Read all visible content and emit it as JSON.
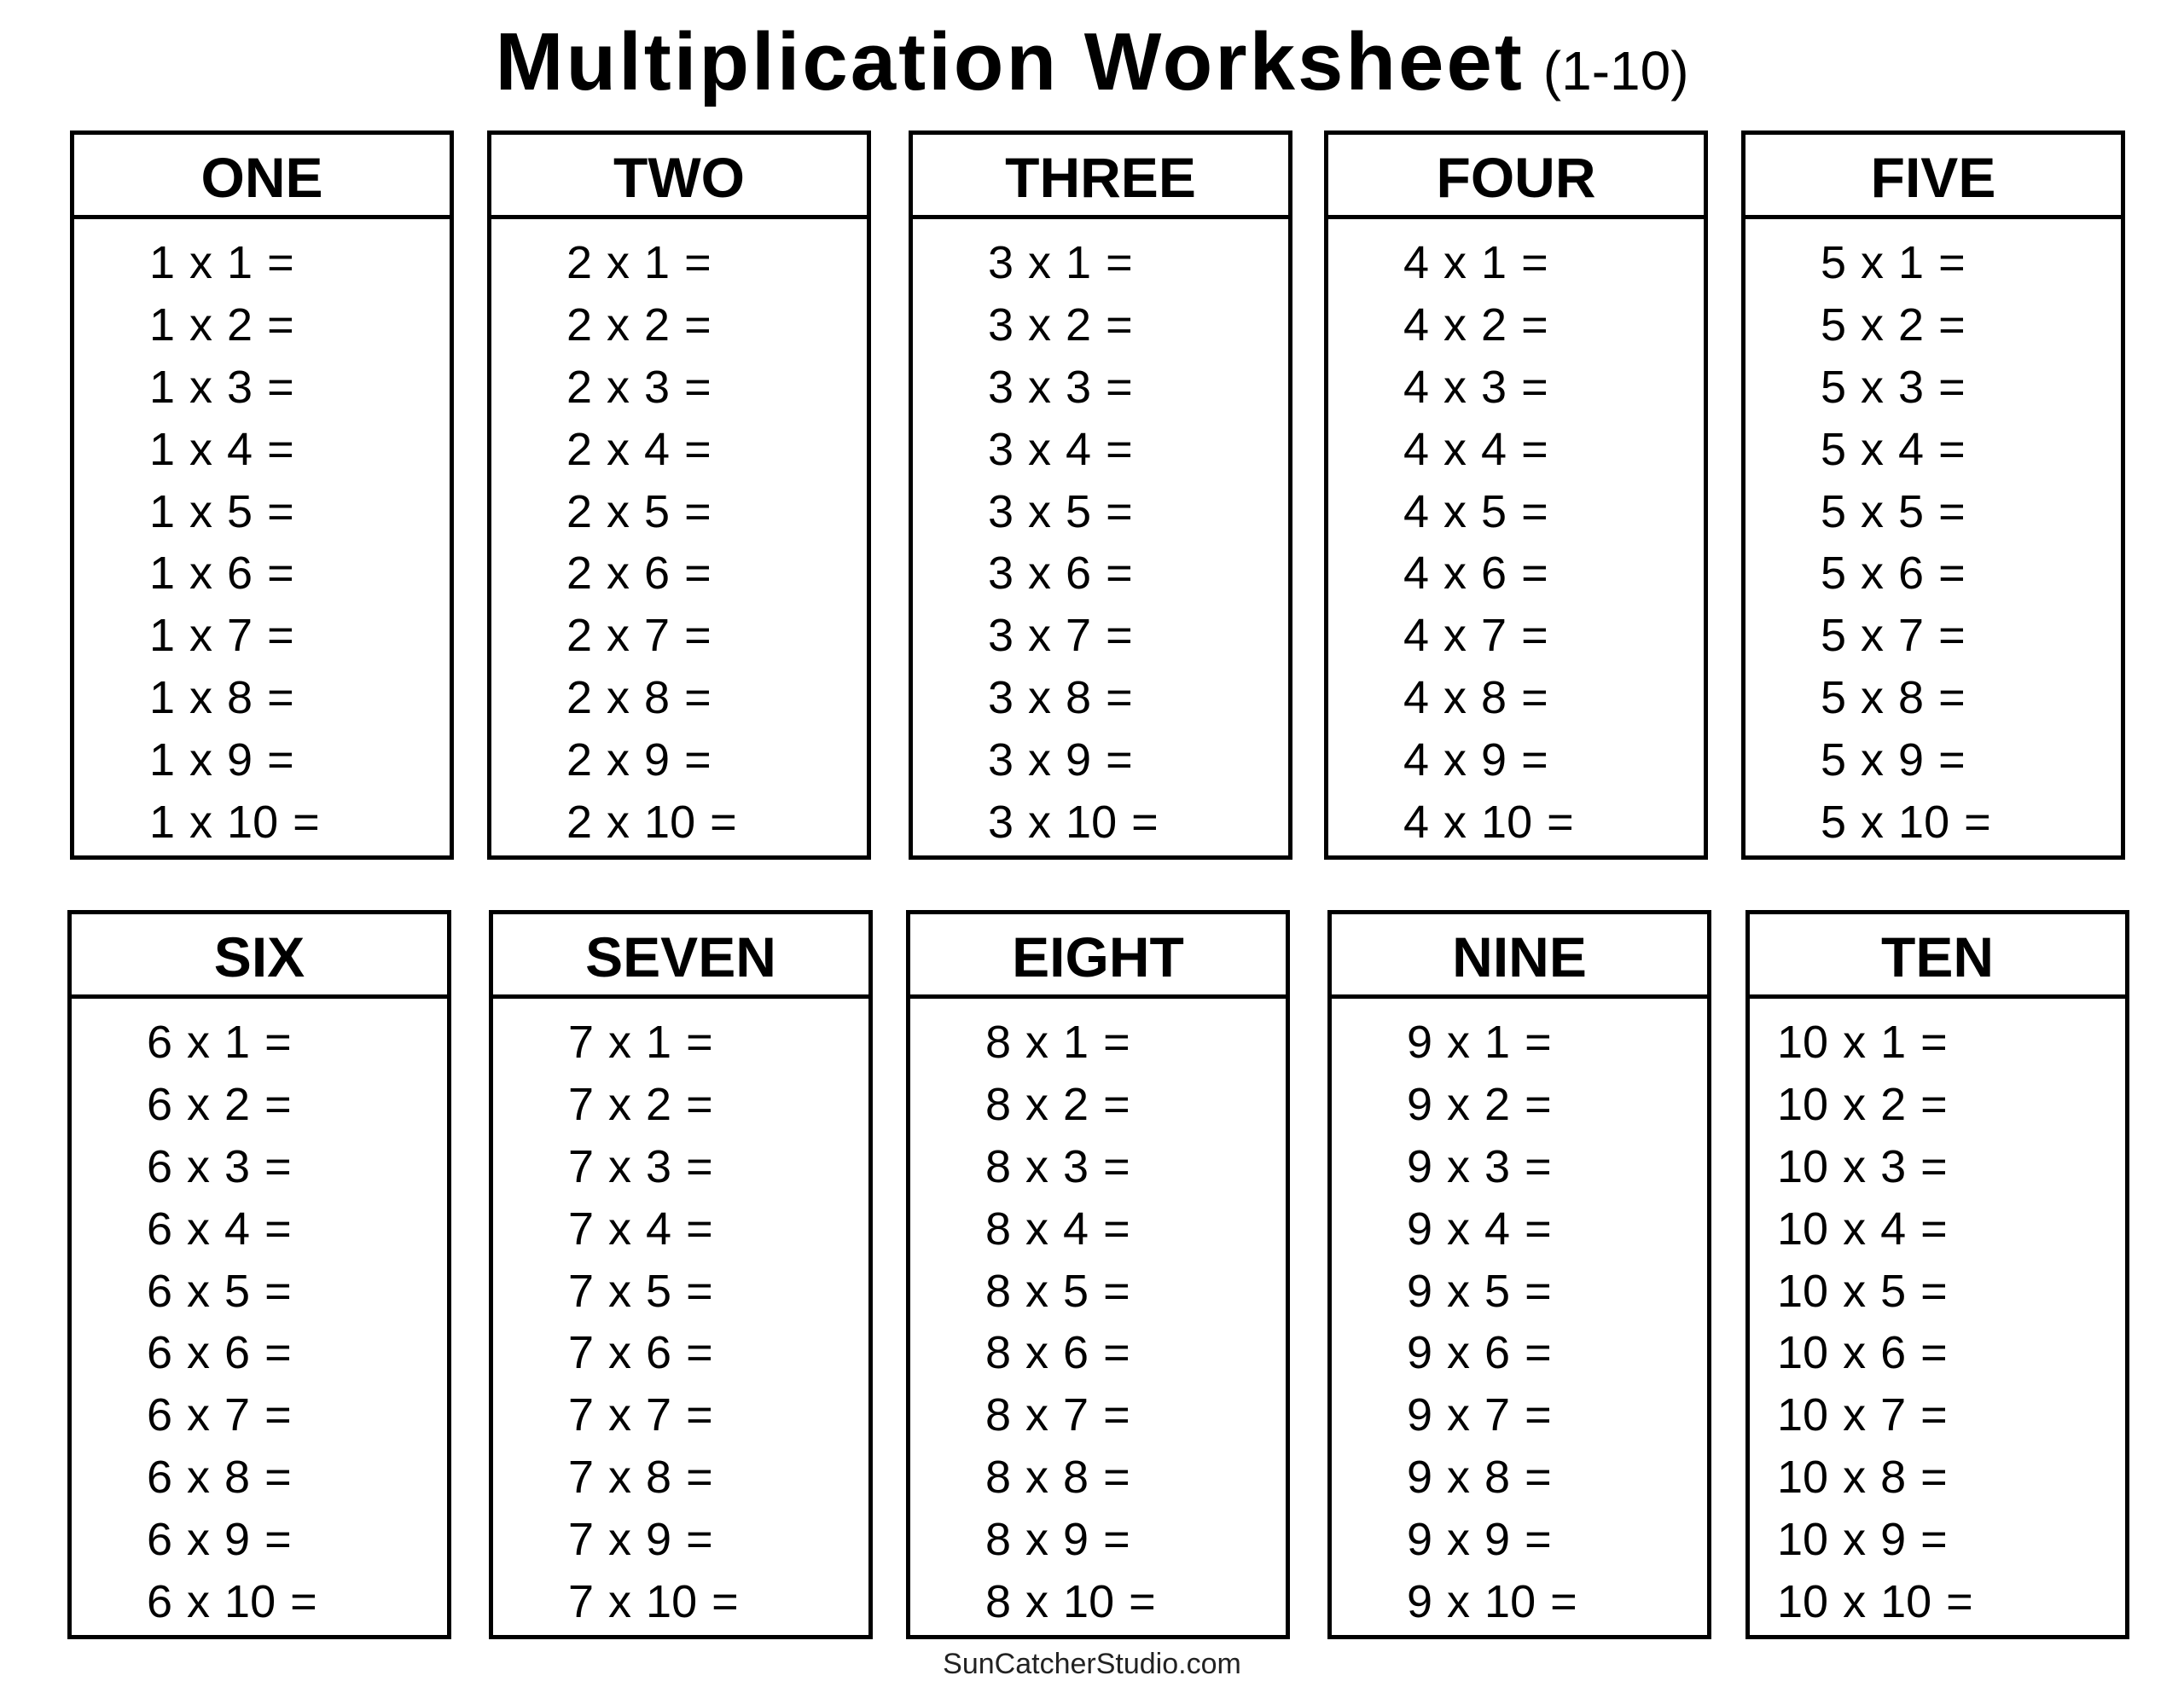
{
  "title": {
    "main": "Multiplication Worksheet",
    "sub": "(1-10)"
  },
  "tables": [
    {
      "name": "ONE",
      "n": 1
    },
    {
      "name": "TWO",
      "n": 2
    },
    {
      "name": "THREE",
      "n": 3
    },
    {
      "name": "FOUR",
      "n": 4
    },
    {
      "name": "FIVE",
      "n": 5
    },
    {
      "name": "SIX",
      "n": 6
    },
    {
      "name": "SEVEN",
      "n": 7
    },
    {
      "name": "EIGHT",
      "n": 8
    },
    {
      "name": "NINE",
      "n": 9
    },
    {
      "name": "TEN",
      "n": 10
    }
  ],
  "problems": {
    "1": [
      "1 x 1 =",
      "1 x 2 =",
      "1 x 3 =",
      "1 x 4 =",
      "1 x 5 =",
      "1 x 6 =",
      "1 x 7 =",
      "1 x 8 =",
      "1 x 9 =",
      "1 x 10 ="
    ],
    "2": [
      "2 x 1 =",
      "2 x 2 =",
      "2 x 3 =",
      "2 x 4 =",
      "2 x 5 =",
      "2 x 6 =",
      "2 x 7 =",
      "2 x 8 =",
      "2 x 9 =",
      "2 x 10 ="
    ],
    "3": [
      "3 x 1 =",
      "3 x 2 =",
      "3 x 3 =",
      "3 x 4 =",
      "3 x 5 =",
      "3 x 6 =",
      "3 x 7 =",
      "3 x 8 =",
      "3 x 9 =",
      "3 x 10 ="
    ],
    "4": [
      "4 x 1 =",
      "4 x 2 =",
      "4 x 3 =",
      "4 x 4 =",
      "4 x 5 =",
      "4 x 6 =",
      "4 x 7 =",
      "4 x 8 =",
      "4 x 9 =",
      "4 x 10 ="
    ],
    "5": [
      "5 x 1 =",
      "5 x 2 =",
      "5 x 3 =",
      "5 x 4 =",
      "5 x 5 =",
      "5 x 6 =",
      "5 x 7 =",
      "5 x 8 =",
      "5 x 9 =",
      "5 x 10 ="
    ],
    "6": [
      "6 x 1 =",
      "6 x 2 =",
      "6 x 3 =",
      "6 x 4 =",
      "6 x 5 =",
      "6 x 6 =",
      "6 x 7 =",
      "6 x 8 =",
      "6 x 9 =",
      "6 x 10 ="
    ],
    "7": [
      "7 x 1 =",
      "7 x 2 =",
      "7 x 3 =",
      "7 x 4 =",
      "7 x 5 =",
      "7 x 6 =",
      "7 x 7 =",
      "7 x 8 =",
      "7 x 9 =",
      "7 x 10 ="
    ],
    "8": [
      "8 x 1 =",
      "8 x 2 =",
      "8 x 3 =",
      "8 x 4 =",
      "8 x 5 =",
      "8 x 6 =",
      "8 x 7 =",
      "8 x 8 =",
      "8 x 9 =",
      "8 x 10 ="
    ],
    "9": [
      "9 x 1 =",
      "9 x 2 =",
      "9 x 3 =",
      "9 x 4 =",
      "9 x 5 =",
      "9 x 6 =",
      "9 x 7 =",
      "9 x 8 =",
      "9 x 9 =",
      "9 x 10 ="
    ],
    "10": [
      "10 x 1 =",
      "10 x 2 =",
      "10 x 3 =",
      "10 x 4 =",
      "10 x 5 =",
      "10 x 6 =",
      "10 x 7 =",
      "10 x 8 =",
      "10 x 9 =",
      "10 x 10 ="
    ]
  },
  "footer": "SunCatcherStudio.com"
}
